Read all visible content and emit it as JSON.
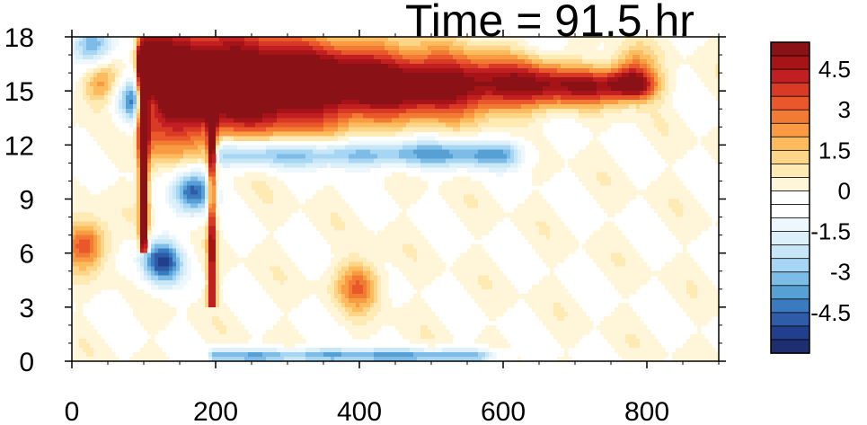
{
  "chart_data": {
    "type": "heatmap",
    "title": "Time = 91.5 hr",
    "xlabel": "",
    "ylabel": "",
    "xlim": [
      0,
      900
    ],
    "ylim": [
      0,
      18
    ],
    "x_ticks": [
      0,
      200,
      400,
      600,
      800
    ],
    "y_ticks": [
      0,
      3,
      6,
      9,
      12,
      15,
      18
    ],
    "x_tick_labels": [
      "0",
      "200",
      "400",
      "600",
      "800"
    ],
    "y_tick_labels": [
      "0",
      "3",
      "6",
      "9",
      "12",
      "15",
      "18"
    ],
    "colorbar": {
      "levels": [
        -5.5,
        -5,
        -4.5,
        -4,
        -3.5,
        -3,
        -2.5,
        -2,
        -1.5,
        -1,
        -0.5,
        0,
        0.5,
        1,
        1.5,
        2,
        2.5,
        3,
        3.5,
        4,
        4.5,
        5,
        5.5
      ],
      "colors": [
        "#1e2e6e",
        "#213f8c",
        "#2f5ca8",
        "#3a7bbf",
        "#56a0d3",
        "#7cbce6",
        "#a6d6f3",
        "#c7e6f6",
        "#dcf0fa",
        "#eef7fc",
        "#ffffff",
        "#ffffff",
        "#fff6da",
        "#feeab2",
        "#fdd588",
        "#fcbc5e",
        "#f99b43",
        "#f27b33",
        "#e9572a",
        "#d93a26",
        "#c21f23",
        "#a61418",
        "#8a1216"
      ],
      "tick_labels": [
        "4.5",
        "3",
        "1.5",
        "0",
        "-1.5",
        "-3",
        "-4.5"
      ],
      "tick_values": [
        4.5,
        3,
        1.5,
        0,
        -1.5,
        -3,
        -4.5
      ]
    },
    "features": [
      {
        "kind": "band",
        "sign": "positive",
        "x": [
          100,
          780
        ],
        "y_center": 15.2,
        "thickness_start": 3.4,
        "thickness_end": 0.8,
        "peak": 8
      },
      {
        "kind": "band",
        "sign": "negative",
        "x": [
          210,
          600
        ],
        "y_center": 11.5,
        "thickness": 0.8,
        "peak": -3.5
      },
      {
        "kind": "front",
        "sign": "positive",
        "x": 100,
        "y": [
          7,
          17
        ],
        "peak": 7
      },
      {
        "kind": "front",
        "sign": "positive",
        "x": 195,
        "y": [
          4,
          14
        ],
        "peak": 5
      },
      {
        "kind": "blob",
        "sign": "negative",
        "x": 125,
        "y": 5.5,
        "peak": -5
      },
      {
        "kind": "blob",
        "sign": "negative",
        "x": 170,
        "y": 9.5,
        "peak": -5
      },
      {
        "kind": "blob",
        "sign": "negative",
        "x": 90,
        "y": 14.5,
        "peak": -4.5
      },
      {
        "kind": "blob",
        "sign": "negative",
        "x": 30,
        "y": 17.5,
        "peak": -4
      },
      {
        "kind": "blob",
        "sign": "positive",
        "x": 20,
        "y": 6.5,
        "peak": 3.5
      },
      {
        "kind": "blob",
        "sign": "positive",
        "x": 400,
        "y": 4.2,
        "peak": 3
      },
      {
        "kind": "blob",
        "sign": "positive",
        "x": 40,
        "y": 15.5,
        "peak": 2.5
      },
      {
        "kind": "blob",
        "sign": "positive",
        "x": 780,
        "y": 16,
        "peak": 3
      },
      {
        "kind": "band",
        "sign": "negative",
        "x": [
          200,
          560
        ],
        "y_center": 0.3,
        "thickness": 0.4,
        "peak": -3.5
      }
    ]
  }
}
